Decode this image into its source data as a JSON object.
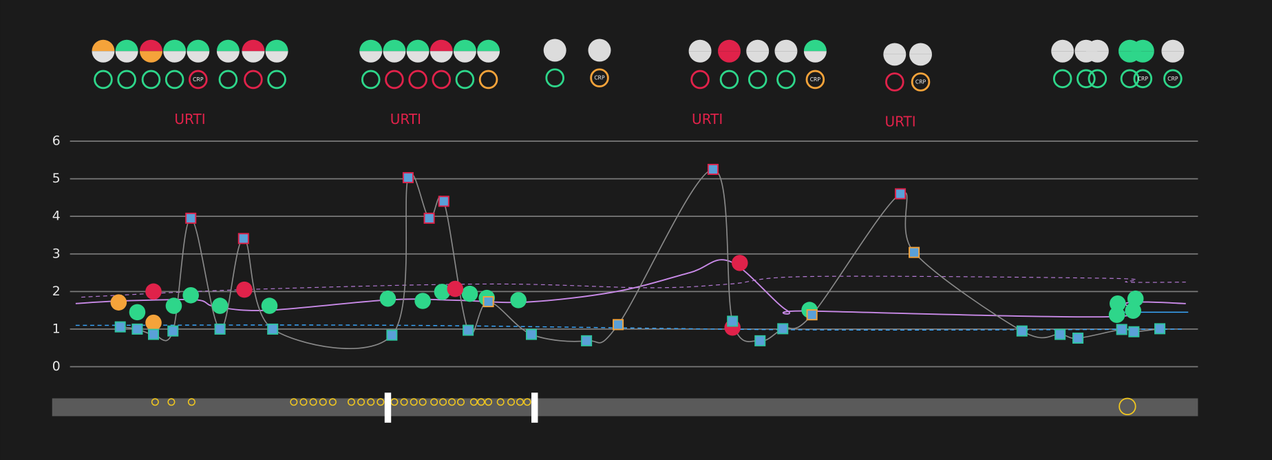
{
  "chart_data": {
    "type": "line",
    "annotations": [
      "URTI",
      "URTI",
      "URTI",
      "URTI"
    ],
    "xlim": [
      0,
      1413
    ],
    "ylim": [
      0,
      6
    ],
    "yticks": [
      0,
      1,
      2,
      3,
      4,
      5,
      6
    ],
    "grid": true,
    "series": [
      {
        "color": "#3aa8ff",
        "dashed": true,
        "width": 1.2,
        "x": [
          29,
          436,
          936,
          1396
        ],
        "values": [
          1.1,
          1.1,
          0.98,
          1.0
        ]
      },
      {
        "color": "#3aa8ff",
        "dashed": false,
        "width": 1.2,
        "x": [
          1319,
          1401
        ],
        "values": [
          1.45,
          1.45
        ]
      },
      {
        "color": "#b57ad6",
        "dashed": true,
        "width": 1,
        "x": [
          36,
          236,
          536,
          736,
          836,
          936,
          1306,
          1326,
          1398
        ],
        "values": [
          1.85,
          2.05,
          2.2,
          2.1,
          2.2,
          2.4,
          2.35,
          2.25,
          2.25
        ]
      },
      {
        "color": "#c98ae8",
        "dashed": false,
        "width": 1.6,
        "x": [
          29,
          86,
          176,
          201,
          266,
          416,
          496,
          586,
          696,
          786,
          836,
          906,
          936,
          1306,
          1326,
          1398
        ],
        "values": [
          1.68,
          1.75,
          1.78,
          1.6,
          1.5,
          1.78,
          1.77,
          1.72,
          2.0,
          2.5,
          2.8,
          1.5,
          1.48,
          1.33,
          1.7,
          1.68
        ]
      },
      {
        "color": "#8a8a8a",
        "dashed": false,
        "width": 1.4,
        "marker": "square",
        "marker_fill": "#5aa0d8",
        "x": [
          84,
          105,
          125,
          149,
          171,
          207,
          236,
          272,
          419,
          439,
          465,
          483,
          513,
          538,
          591,
          659,
          698,
          815,
          839,
          873,
          901,
          937,
          1046,
          1063,
          1196,
          1243,
          1265,
          1319,
          1334,
          1366
        ],
        "values": [
          1.06,
          1.0,
          0.86,
          0.95,
          3.95,
          1.0,
          3.41,
          1.0,
          0.84,
          5.03,
          3.95,
          4.4,
          0.97,
          1.73,
          0.86,
          0.69,
          1.12,
          5.25,
          1.21,
          0.69,
          1.01,
          1.38,
          4.6,
          3.04,
          0.95,
          0.86,
          0.76,
          0.99,
          0.93,
          1.01
        ],
        "marker_colors": [
          "#2ec4a0",
          "#2ec4a0",
          "#2ec4a0",
          "#2ec4a0",
          "#e0224a",
          "#2ec4a0",
          "#e0224a",
          "#2ec4a0",
          "#2ec4a0",
          "#e0224a",
          "#e0224a",
          "#e0224a",
          "#2ec4a0",
          "#f5a33a",
          "#2ec4a0",
          "#2ec4a0",
          "#f5a33a",
          "#e0224a",
          "#2ec4a0",
          "#2ec4a0",
          "#2ec4a0",
          "#f5a33a",
          "#e0224a",
          "#f5a33a",
          "#2ec4a0",
          "#2ec4a0",
          "#2ec4a0",
          "#2ec4a0",
          "#2ec4a0",
          "#2ec4a0"
        ]
      },
      {
        "color": "#2ed68a",
        "marker": "circle",
        "x": [
          105,
          150,
          171,
          207,
          268,
          414,
          457,
          481,
          515,
          536,
          575,
          934,
          1314,
          1313,
          1336,
          1333
        ],
        "values": [
          1.45,
          1.62,
          1.9,
          1.62,
          1.62,
          1.81,
          1.75,
          1.99,
          1.94,
          1.83,
          1.77,
          1.51,
          1.68,
          1.38,
          1.81,
          1.49
        ]
      },
      {
        "color": "#e0224a",
        "marker": "circle",
        "x": [
          125,
          237,
          497,
          839,
          848
        ],
        "values": [
          2.0,
          2.05,
          2.07,
          1.04,
          2.76
        ]
      },
      {
        "color": "#f5a33a",
        "marker": "circle",
        "x": [
          82,
          125
        ],
        "values": [
          1.71,
          1.17
        ]
      }
    ]
  },
  "indicators": [
    {
      "circles": [
        [
          "#f5a33a",
          "#e0e0e0"
        ],
        [
          "#2ed68a",
          "#e0e0e0"
        ],
        [
          "#e0224a",
          "#f5a33a"
        ],
        [
          "#2ed68a",
          "#e0e0e0"
        ],
        [
          "#2ed68a",
          "#e0e0e0"
        ],
        [
          "#2ed68a",
          "#e0e0e0"
        ],
        [
          "#e0224a",
          "#e0e0e0"
        ],
        [
          "#2ed68a",
          "#e0e0e0"
        ]
      ],
      "rings": [
        {
          "color": "#2ed68a"
        },
        {
          "color": "#2ed68a"
        },
        {
          "color": "#2ed68a"
        },
        {
          "color": "#2ed68a"
        },
        {
          "color": "#e0224a",
          "label": "CRP"
        },
        {
          "color": "#2ed68a"
        },
        {
          "color": "#e0224a"
        },
        {
          "color": "#2ed68a"
        }
      ]
    },
    {
      "circles": [
        [
          "#2ed68a",
          "#e0e0e0"
        ],
        [
          "#2ed68a",
          "#e0e0e0"
        ],
        [
          "#2ed68a",
          "#e0e0e0"
        ],
        [
          "#e0224a",
          "#e0e0e0"
        ],
        [
          "#2ed68a",
          "#e0e0e0"
        ],
        [
          "#2ed68a",
          "#e0e0e0"
        ]
      ],
      "rings": [
        {
          "color": "#2ed68a"
        },
        {
          "color": "#e0224a"
        },
        {
          "color": "#e0224a"
        },
        {
          "color": "#e0224a"
        },
        {
          "color": "#2ed68a"
        },
        {
          "color": "#f5a33a"
        }
      ]
    },
    {
      "circles": [
        [
          "#dcdcdc",
          "#dcdcdc"
        ],
        [
          "#dcdcdc",
          "#dcdcdc"
        ]
      ],
      "rings": [
        {
          "color": "#2ed68a"
        },
        {
          "color": "#f5a33a",
          "label": "CRP"
        }
      ]
    },
    {
      "circles": [
        [
          "#dcdcdc",
          "#dcdcdc"
        ],
        [
          "#e0224a",
          "#e0224a"
        ],
        [
          "#dcdcdc",
          "#dcdcdc"
        ],
        [
          "#dcdcdc",
          "#dcdcdc"
        ],
        [
          "#2ed68a",
          "#e0e0e0"
        ]
      ],
      "rings": [
        {
          "color": "#e0224a"
        },
        {
          "color": "#2ed68a"
        },
        {
          "color": "#2ed68a"
        },
        {
          "color": "#2ed68a"
        },
        {
          "color": "#f5a33a",
          "label": "CRP"
        }
      ]
    },
    {
      "circles": [
        [
          "#dcdcdc",
          "#dcdcdc"
        ],
        [
          "#dcdcdc",
          "#dcdcdc"
        ]
      ],
      "rings": [
        {
          "color": "#e0224a"
        },
        {
          "color": "#f5a33a",
          "label": "CRP"
        }
      ]
    },
    {
      "circles": [
        [
          "#dcdcdc",
          "#dcdcdc"
        ],
        [
          "#dcdcdc",
          "#dcdcdc"
        ],
        [
          "#dcdcdc",
          "#dcdcdc"
        ],
        [
          "#2ed68a",
          "#2ed68a"
        ],
        [
          "#2ed68a",
          "#2ed68a"
        ],
        [
          "#dcdcdc",
          "#dcdcdc"
        ]
      ],
      "rings": [
        {
          "color": "#2ed68a"
        },
        {
          "color": "#2ed68a"
        },
        {
          "color": "#2ed68a"
        },
        {
          "color": "#2ed68a"
        },
        {
          "color": "#2ed68a",
          "label": "CRP"
        },
        {
          "color": "#2ed68a",
          "label": "CRP"
        }
      ]
    }
  ]
}
